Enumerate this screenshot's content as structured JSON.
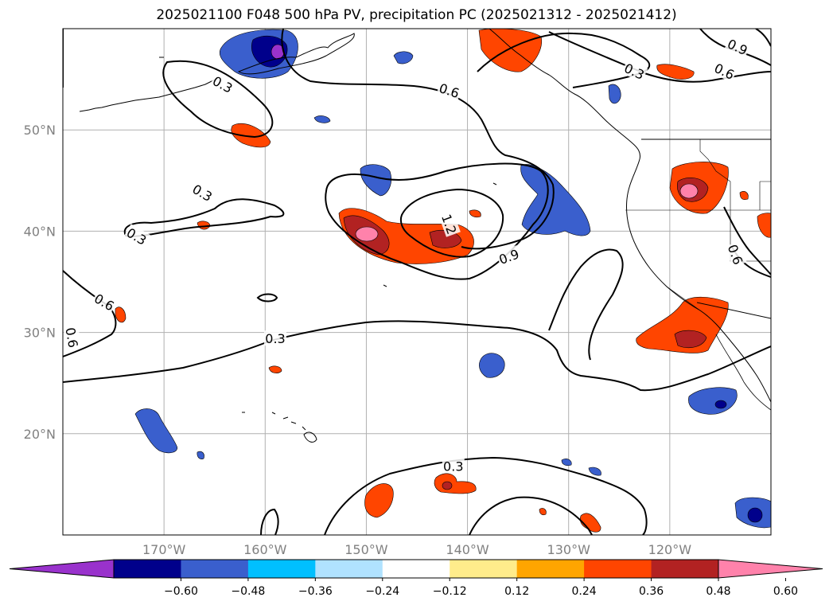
{
  "title": "2025021100 F048 500 hPa PV, precipitation PC (2025021312 - 2025021412)",
  "map": {
    "lon_range": [
      -180,
      -110
    ],
    "lat_range": [
      10,
      60
    ],
    "lon_ticks": [
      {
        "lon": -170,
        "label": "170°W"
      },
      {
        "lon": -160,
        "label": "160°W"
      },
      {
        "lon": -150,
        "label": "150°W"
      },
      {
        "lon": -140,
        "label": "140°W"
      },
      {
        "lon": -130,
        "label": "130°W"
      },
      {
        "lon": -120,
        "label": "120°W"
      }
    ],
    "lat_ticks": [
      {
        "lat": 50,
        "label": "50°N"
      },
      {
        "lat": 40,
        "label": "40°N"
      },
      {
        "lat": 30,
        "label": "30°N"
      },
      {
        "lat": 20,
        "label": "20°N"
      }
    ],
    "gridlines": true
  },
  "contour_labels": [
    {
      "text": "0.9",
      "lon": -113.3,
      "lat": 58.2,
      "rot": 25
    },
    {
      "text": "0.6",
      "lon": -114.6,
      "lat": 55.8,
      "rot": 25
    },
    {
      "text": "0.3",
      "lon": -123.5,
      "lat": 55.8,
      "rot": 25
    },
    {
      "text": "0.6",
      "lon": -141.8,
      "lat": 53.9,
      "rot": 18
    },
    {
      "text": "0.3",
      "lon": -164.2,
      "lat": 54.5,
      "rot": 28
    },
    {
      "text": "0.3",
      "lon": -166.2,
      "lat": 43.8,
      "rot": 30
    },
    {
      "text": "0.3",
      "lon": -172.7,
      "lat": 39.5,
      "rot": 30
    },
    {
      "text": "1.2",
      "lon": -141.8,
      "lat": 40.7,
      "rot": 70
    },
    {
      "text": "0.9",
      "lon": -135.9,
      "lat": 37.5,
      "rot": -20
    },
    {
      "text": "0.6",
      "lon": -113.5,
      "lat": 37.7,
      "rot": 70
    },
    {
      "text": "0.6",
      "lon": -175.9,
      "lat": 33.0,
      "rot": 30
    },
    {
      "text": "0.6",
      "lon": -179.1,
      "lat": 29.5,
      "rot": 80
    },
    {
      "text": "0.3",
      "lon": -159.0,
      "lat": 29.4,
      "rot": 0
    },
    {
      "text": "0.3",
      "lon": -141.4,
      "lat": 16.8,
      "rot": 0
    }
  ],
  "colorbar": {
    "colors": [
      "#9932cc",
      "#00008b",
      "#3a5fcd",
      "#00bfff",
      "#b0e2ff",
      "#ffffff",
      "#ffec8b",
      "#ffa500",
      "#ff4500",
      "#b22222",
      "#ff82ab"
    ],
    "tick_labels": [
      "−0.60",
      "−0.48",
      "−0.36",
      "−0.24",
      "−0.12",
      "0.12",
      "0.24",
      "0.36",
      "0.48",
      "0.60"
    ]
  }
}
